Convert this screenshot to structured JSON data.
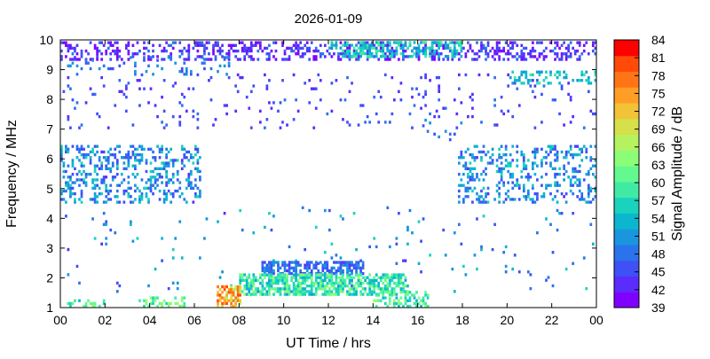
{
  "chart_data": {
    "type": "heatmap",
    "title": "2026-01-09",
    "xlabel": "UT Time / hrs",
    "ylabel": "Frequency / MHz",
    "colorbar_label": "Signal Amplitude / dB",
    "xlim": [
      0,
      24
    ],
    "ylim": [
      1,
      10
    ],
    "x_ticks": [
      "00",
      "02",
      "04",
      "06",
      "08",
      "10",
      "12",
      "14",
      "16",
      "18",
      "20",
      "22",
      "00"
    ],
    "y_ticks": [
      "1",
      "2",
      "3",
      "4",
      "5",
      "6",
      "7",
      "8",
      "9",
      "10"
    ],
    "colorbar_range": [
      39,
      84
    ],
    "colorbar_ticks": [
      "39",
      "42",
      "45",
      "48",
      "51",
      "54",
      "57",
      "60",
      "63",
      "66",
      "69",
      "72",
      "75",
      "78",
      "81",
      "84"
    ],
    "colorbar_colors": [
      "#7f00ff",
      "#5a2cfd",
      "#3f50f7",
      "#2b73ec",
      "#1996de",
      "#0cb6cf",
      "#1ad3bc",
      "#40eaa5",
      "#64f98e",
      "#8cfd76",
      "#b4f35f",
      "#d5e04a",
      "#f2c237",
      "#ff9e26",
      "#ff7516",
      "#ff4a09",
      "#ff0000"
    ],
    "grid": false,
    "legend": "colorbar-right",
    "regions": [
      {
        "t": [
          0.0,
          24.0
        ],
        "f": [
          9.3,
          9.9
        ],
        "amp": [
          39,
          48
        ],
        "density": 0.35
      },
      {
        "t": [
          12.0,
          18.0
        ],
        "f": [
          9.4,
          9.95
        ],
        "amp": [
          50,
          60
        ],
        "density": 0.45
      },
      {
        "t": [
          0.0,
          7.5
        ],
        "f": [
          8.8,
          9.4
        ],
        "amp": [
          44,
          52
        ],
        "density": 0.12
      },
      {
        "t": [
          0.0,
          24.0
        ],
        "f": [
          7.0,
          8.8
        ],
        "amp": [
          42,
          48
        ],
        "density": 0.05
      },
      {
        "t": [
          0.0,
          6.2
        ],
        "f": [
          4.5,
          6.4
        ],
        "amp": [
          44,
          56
        ],
        "density": 0.32
      },
      {
        "t": [
          17.8,
          24.0
        ],
        "f": [
          4.5,
          6.4
        ],
        "amp": [
          44,
          56
        ],
        "density": 0.28
      },
      {
        "t": [
          0.0,
          24.0
        ],
        "f": [
          1.5,
          4.4
        ],
        "amp": [
          44,
          56
        ],
        "density": 0.02
      },
      {
        "t": [
          9.0,
          13.5
        ],
        "f": [
          2.1,
          2.5
        ],
        "amp": [
          44,
          52
        ],
        "density": 0.6
      },
      {
        "t": [
          8.0,
          15.5
        ],
        "f": [
          1.4,
          2.1
        ],
        "amp": [
          52,
          64
        ],
        "density": 0.7
      },
      {
        "t": [
          7.0,
          8.0
        ],
        "f": [
          1.0,
          1.7
        ],
        "amp": [
          66,
          80
        ],
        "density": 0.7
      },
      {
        "t": [
          0.0,
          2.0
        ],
        "f": [
          1.0,
          1.2
        ],
        "amp": [
          54,
          64
        ],
        "density": 0.25
      },
      {
        "t": [
          3.5,
          5.5
        ],
        "f": [
          1.0,
          1.3
        ],
        "amp": [
          56,
          66
        ],
        "density": 0.4
      },
      {
        "t": [
          14.0,
          16.5
        ],
        "f": [
          1.0,
          1.5
        ],
        "amp": [
          54,
          64
        ],
        "density": 0.3
      },
      {
        "t": [
          16.0,
          18.0
        ],
        "f": [
          6.6,
          7.3
        ],
        "amp": [
          44,
          52
        ],
        "density": 0.1
      },
      {
        "t": [
          20.0,
          24.0
        ],
        "f": [
          8.5,
          8.9
        ],
        "amp": [
          50,
          58
        ],
        "density": 0.3
      }
    ]
  }
}
